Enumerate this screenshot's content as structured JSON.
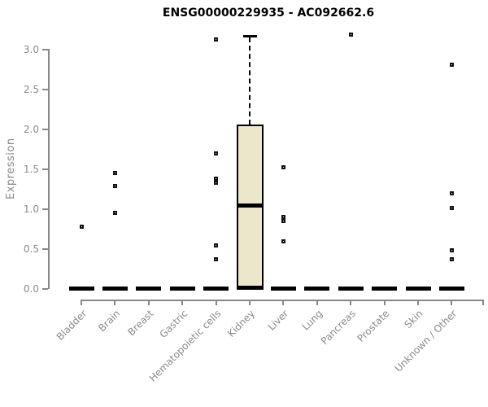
{
  "chart_data": {
    "type": "boxplot",
    "title": "ENSG00000229935 - AC092662.6",
    "ylabel": "Expression",
    "xlabel": "",
    "ylim": [
      0,
      3.2
    ],
    "yticks": [
      "0.0",
      "0.5",
      "1.0",
      "1.5",
      "2.0",
      "2.5",
      "3.0"
    ],
    "grid": "off",
    "legend": "none",
    "categories": [
      "Bladder",
      "Brain",
      "Breast",
      "Gastric",
      "Hematopoietic cells",
      "Kidney",
      "Liver",
      "Lung",
      "Pancreas",
      "Prostate",
      "Skin",
      "Unknown / Other"
    ],
    "boxes": [
      {
        "category": "Bladder",
        "q1": 0,
        "median": 0,
        "q3": 0,
        "whisker_low": 0,
        "whisker_high": 0,
        "outliers": [
          0.78
        ]
      },
      {
        "category": "Brain",
        "q1": 0,
        "median": 0,
        "q3": 0,
        "whisker_low": 0,
        "whisker_high": 0,
        "outliers": [
          1.45,
          1.29,
          0.95
        ]
      },
      {
        "category": "Breast",
        "q1": 0,
        "median": 0,
        "q3": 0,
        "whisker_low": 0,
        "whisker_high": 0,
        "outliers": []
      },
      {
        "category": "Gastric",
        "q1": 0,
        "median": 0,
        "q3": 0,
        "whisker_low": 0,
        "whisker_high": 0,
        "outliers": []
      },
      {
        "category": "Hematopoietic cells",
        "q1": 0,
        "median": 0,
        "q3": 0,
        "whisker_low": 0,
        "whisker_high": 0,
        "outliers": [
          3.12,
          1.69,
          1.38,
          1.33,
          0.54,
          0.37
        ]
      },
      {
        "category": "Kidney",
        "q1": 0,
        "median": 1.04,
        "q3": 2.06,
        "whisker_low": 0,
        "whisker_high": 3.17,
        "outliers": []
      },
      {
        "category": "Liver",
        "q1": 0,
        "median": 0,
        "q3": 0,
        "whisker_low": 0,
        "whisker_high": 0,
        "outliers": [
          1.52,
          0.9,
          0.85,
          0.59
        ]
      },
      {
        "category": "Lung",
        "q1": 0,
        "median": 0,
        "q3": 0,
        "whisker_low": 0,
        "whisker_high": 0,
        "outliers": []
      },
      {
        "category": "Pancreas",
        "q1": 0,
        "median": 0,
        "q3": 0,
        "whisker_low": 0,
        "whisker_high": 0,
        "outliers": [
          3.18
        ]
      },
      {
        "category": "Prostate",
        "q1": 0,
        "median": 0,
        "q3": 0,
        "whisker_low": 0,
        "whisker_high": 0,
        "outliers": []
      },
      {
        "category": "Skin",
        "q1": 0,
        "median": 0,
        "q3": 0,
        "whisker_low": 0,
        "whisker_high": 0,
        "outliers": []
      },
      {
        "category": "Unknown / Other",
        "q1": 0,
        "median": 0,
        "q3": 0,
        "whisker_low": 0,
        "whisker_high": 0,
        "outliers": [
          2.81,
          1.19,
          1.01,
          0.48,
          0.37
        ]
      }
    ],
    "colors": {
      "box_fill": "#ECE7CB",
      "box_border": "#000000",
      "axis": "#888888",
      "tick_label": "#8a8a8a",
      "title": "#000000"
    }
  }
}
